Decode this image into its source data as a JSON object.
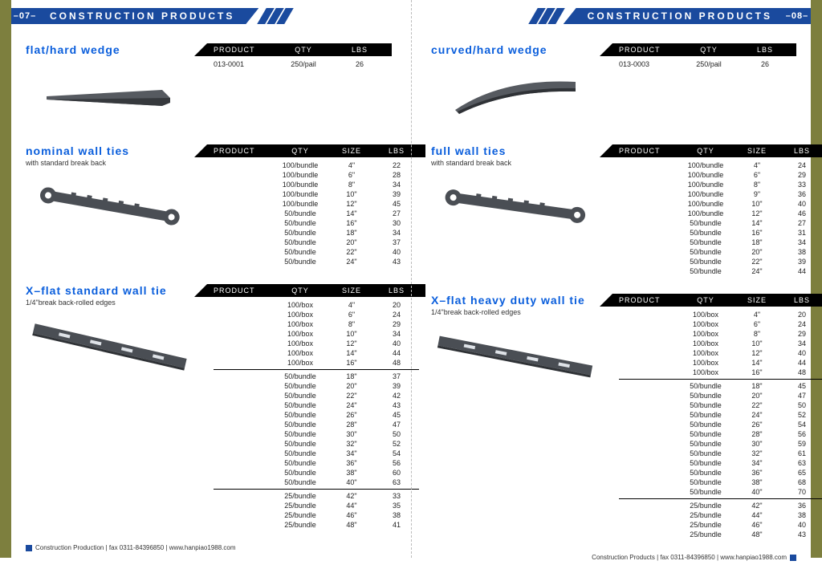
{
  "header": {
    "title": "CONSTRUCTION   PRODUCTS",
    "page_left": "–07–",
    "page_right": "–08–"
  },
  "footer": {
    "left": "Construction Production | fax 0311-84396850 | www.hanpiao1988.com",
    "right": "Construction Products | fax 0311-84396850 | www.hanpiao1988.com"
  },
  "colors": {
    "accent": "#1a4a9e",
    "gutter": "#7d7f3e",
    "title": "#0a5edc",
    "tbl_header_bg": "#000000"
  },
  "cols3": {
    "product": "PRODUCT",
    "qty": "QTY",
    "lbs": "LBS"
  },
  "cols4": {
    "product": "PRODUCT",
    "qty": "QTY",
    "size": "SIZE",
    "lbs": "LBS"
  },
  "left": {
    "p1": {
      "title": "flat/hard wedge",
      "rows": [
        [
          "013-0001",
          "250/pail",
          "26"
        ]
      ]
    },
    "p2": {
      "title": "nominal wall ties",
      "sub": "with standard break back",
      "rows": [
        [
          "",
          "100/bundle",
          "4\"",
          "22"
        ],
        [
          "",
          "100/bundle",
          "6\"",
          "28"
        ],
        [
          "",
          "100/bundle",
          "8\"",
          "34"
        ],
        [
          "",
          "100/bundle",
          "10\"",
          "39"
        ],
        [
          "",
          "100/bundle",
          "12\"",
          "45"
        ],
        [
          "",
          "50/bundle",
          "14\"",
          "27"
        ],
        [
          "",
          "50/bundle",
          "16\"",
          "30"
        ],
        [
          "",
          "50/bundle",
          "18\"",
          "34"
        ],
        [
          "",
          "50/bundle",
          "20\"",
          "37"
        ],
        [
          "",
          "50/bundle",
          "22\"",
          "40"
        ],
        [
          "",
          "50/bundle",
          "24\"",
          "43"
        ]
      ]
    },
    "p3": {
      "title": "X–flat standard wall tie",
      "sub": "1/4\"break back-rolled edges",
      "groups": [
        [
          [
            "",
            "100/box",
            "4\"",
            "20"
          ],
          [
            "",
            "100/box",
            "6\"",
            "24"
          ],
          [
            "",
            "100/box",
            "8\"",
            "29"
          ],
          [
            "",
            "100/box",
            "10\"",
            "34"
          ],
          [
            "",
            "100/box",
            "12\"",
            "40"
          ],
          [
            "",
            "100/box",
            "14\"",
            "44"
          ],
          [
            "",
            "100/box",
            "16\"",
            "48"
          ]
        ],
        [
          [
            "",
            "50/bundle",
            "18\"",
            "37"
          ],
          [
            "",
            "50/bundle",
            "20\"",
            "39"
          ],
          [
            "",
            "50/bundle",
            "22\"",
            "42"
          ],
          [
            "",
            "50/bundle",
            "24\"",
            "43"
          ],
          [
            "",
            "50/bundle",
            "26\"",
            "45"
          ],
          [
            "",
            "50/bundle",
            "28\"",
            "47"
          ],
          [
            "",
            "50/bundle",
            "30\"",
            "50"
          ],
          [
            "",
            "50/bundle",
            "32\"",
            "52"
          ],
          [
            "",
            "50/bundle",
            "34\"",
            "54"
          ],
          [
            "",
            "50/bundle",
            "36\"",
            "56"
          ],
          [
            "",
            "50/bundle",
            "38\"",
            "60"
          ],
          [
            "",
            "50/bundle",
            "40\"",
            "63"
          ]
        ],
        [
          [
            "",
            "25/bundle",
            "42\"",
            "33"
          ],
          [
            "",
            "25/bundle",
            "44\"",
            "35"
          ],
          [
            "",
            "25/bundle",
            "46\"",
            "38"
          ],
          [
            "",
            "25/bundle",
            "48\"",
            "41"
          ]
        ]
      ]
    }
  },
  "right": {
    "p1": {
      "title": "curved/hard wedge",
      "rows": [
        [
          "013-0003",
          "250/pail",
          "26"
        ]
      ]
    },
    "p2": {
      "title": "full wall ties",
      "sub": "with standard break back",
      "rows": [
        [
          "",
          "100/bundle",
          "4\"",
          "24"
        ],
        [
          "",
          "100/bundle",
          "6\"",
          "29"
        ],
        [
          "",
          "100/bundle",
          "8\"",
          "33"
        ],
        [
          "",
          "100/bundle",
          "9\"",
          "36"
        ],
        [
          "",
          "100/bundle",
          "10\"",
          "40"
        ],
        [
          "",
          "100/bundle",
          "12\"",
          "46"
        ],
        [
          "",
          "50/bundle",
          "14\"",
          "27"
        ],
        [
          "",
          "50/bundle",
          "16\"",
          "31"
        ],
        [
          "",
          "50/bundle",
          "18\"",
          "34"
        ],
        [
          "",
          "50/bundle",
          "20\"",
          "38"
        ],
        [
          "",
          "50/bundle",
          "22\"",
          "39"
        ],
        [
          "",
          "50/bundle",
          "24\"",
          "44"
        ]
      ]
    },
    "p3": {
      "title": "X–flat heavy duty wall tie",
      "sub": "1/4\"break back-rolled edges",
      "groups": [
        [
          [
            "",
            "100/box",
            "4\"",
            "20"
          ],
          [
            "",
            "100/box",
            "6\"",
            "24"
          ],
          [
            "",
            "100/box",
            "8\"",
            "29"
          ],
          [
            "",
            "100/box",
            "10\"",
            "34"
          ],
          [
            "",
            "100/box",
            "12\"",
            "40"
          ],
          [
            "",
            "100/box",
            "14\"",
            "44"
          ],
          [
            "",
            "100/box",
            "16\"",
            "48"
          ]
        ],
        [
          [
            "",
            "50/bundle",
            "18\"",
            "45"
          ],
          [
            "",
            "50/bundle",
            "20\"",
            "47"
          ],
          [
            "",
            "50/bundle",
            "22\"",
            "50"
          ],
          [
            "",
            "50/bundle",
            "24\"",
            "52"
          ],
          [
            "",
            "50/bundle",
            "26\"",
            "54"
          ],
          [
            "",
            "50/bundle",
            "28\"",
            "56"
          ],
          [
            "",
            "50/bundle",
            "30\"",
            "59"
          ],
          [
            "",
            "50/bundle",
            "32\"",
            "61"
          ],
          [
            "",
            "50/bundle",
            "34\"",
            "63"
          ],
          [
            "",
            "50/bundle",
            "36\"",
            "65"
          ],
          [
            "",
            "50/bundle",
            "38\"",
            "68"
          ],
          [
            "",
            "50/bundle",
            "40\"",
            "70"
          ]
        ],
        [
          [
            "",
            "25/bundle",
            "42\"",
            "36"
          ],
          [
            "",
            "25/bundle",
            "44\"",
            "38"
          ],
          [
            "",
            "25/bundle",
            "46\"",
            "40"
          ],
          [
            "",
            "25/bundle",
            "48\"",
            "43"
          ]
        ]
      ]
    }
  }
}
